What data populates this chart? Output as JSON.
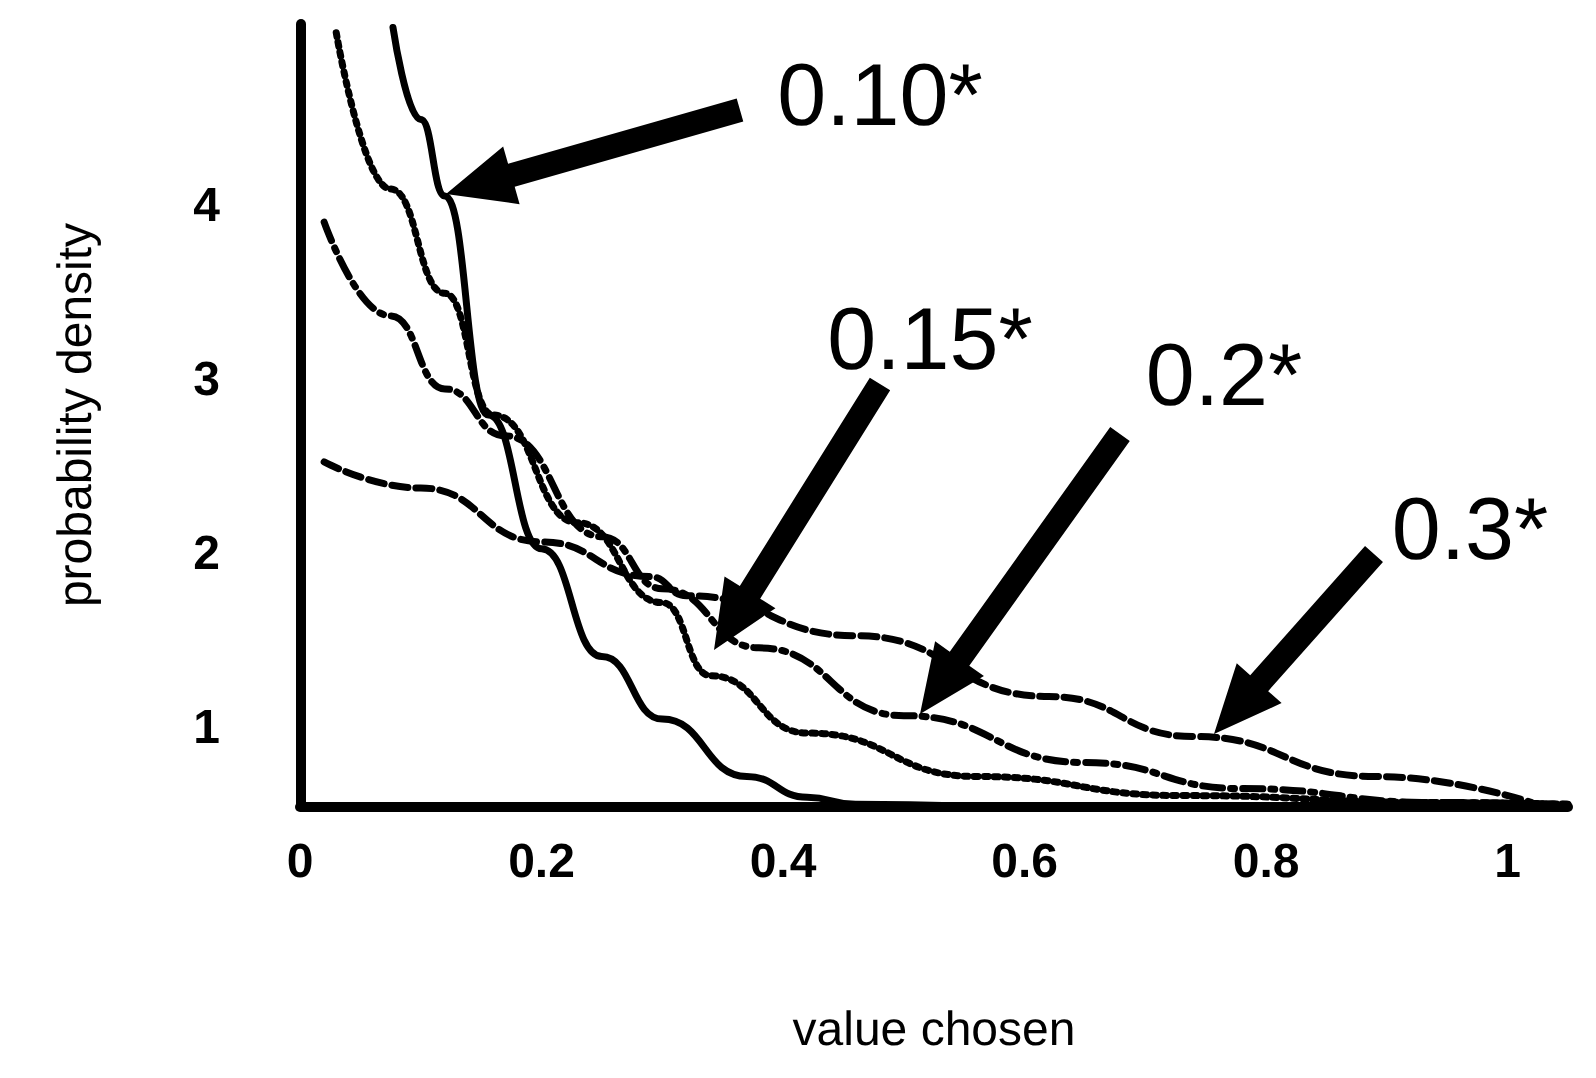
{
  "chart_data": {
    "type": "line",
    "xlabel": "value chosen",
    "ylabel": "probability density",
    "xlim": [
      0,
      1.05
    ],
    "ylim": [
      0.55,
      5.05
    ],
    "xticks": [
      0,
      0.2,
      0.4,
      0.6,
      0.8,
      1
    ],
    "yticks": [
      1,
      2,
      3,
      4
    ],
    "grid": false,
    "marker": "none",
    "series": [
      {
        "color": "#000000",
        "line_style": "solid",
        "x": [
          0.077,
          0.1,
          0.12,
          0.156,
          0.2,
          0.25,
          0.3,
          0.37,
          0.42,
          0.46,
          0.55
        ],
        "values": [
          5.03,
          4.5,
          4.06,
          2.8,
          2.03,
          1.41,
          1.05,
          0.72,
          0.6,
          0.56,
          0.55
        ]
      },
      {
        "color": "#000000",
        "line_style": "dotted",
        "x": [
          0.03,
          0.075,
          0.12,
          0.16,
          0.23,
          0.3,
          0.34,
          0.42,
          0.56,
          0.73,
          0.94,
          1.05
        ],
        "values": [
          5.0,
          4.1,
          3.5,
          2.8,
          2.18,
          1.72,
          1.3,
          0.97,
          0.72,
          0.61,
          0.57,
          0.56
        ]
      },
      {
        "color": "#000000",
        "line_style": "dashdot",
        "x": [
          0.02,
          0.075,
          0.12,
          0.17,
          0.25,
          0.3,
          0.38,
          0.5,
          0.65,
          0.78,
          0.94,
          1.05
        ],
        "values": [
          3.91,
          3.37,
          2.95,
          2.68,
          2.1,
          1.8,
          1.46,
          1.07,
          0.8,
          0.65,
          0.57,
          0.56
        ]
      },
      {
        "color": "#000000",
        "line_style": "dashed",
        "x": [
          0.02,
          0.1,
          0.2,
          0.29,
          0.32,
          0.46,
          0.62,
          0.74,
          0.89,
          1.02
        ],
        "values": [
          2.53,
          2.38,
          2.07,
          1.87,
          1.76,
          1.53,
          1.18,
          0.95,
          0.72,
          0.57
        ]
      }
    ],
    "annotations": [
      "0.10*",
      "0.15*",
      "0.2*",
      "0.3*"
    ]
  }
}
